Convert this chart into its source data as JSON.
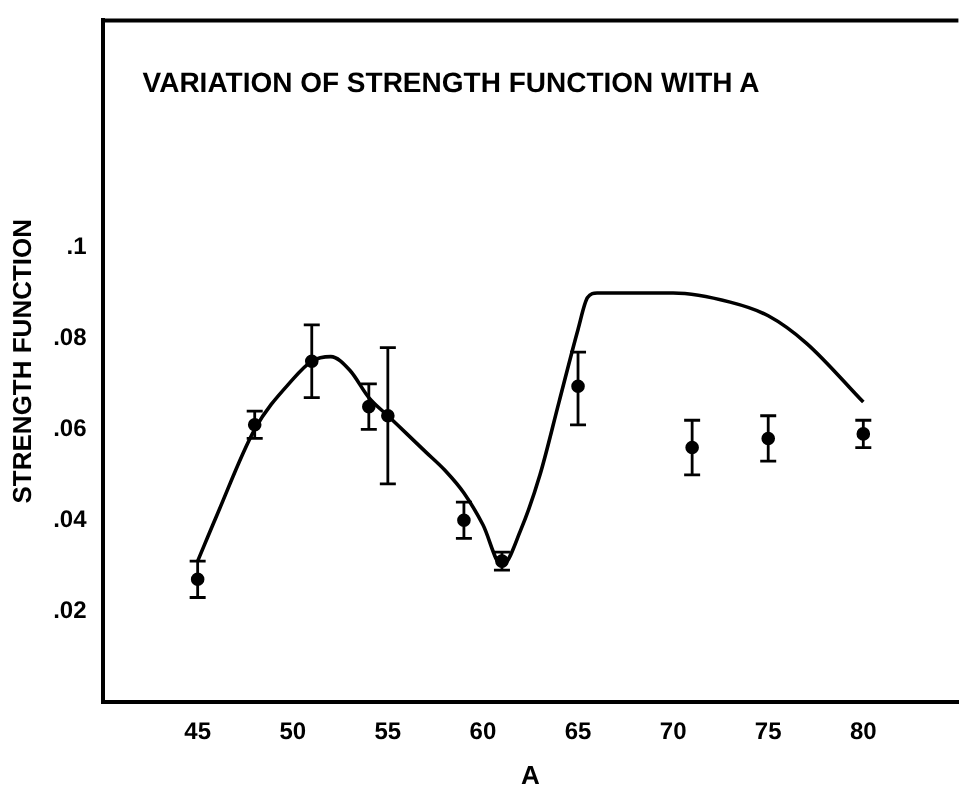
{
  "chart_data": {
    "type": "scatter",
    "title": "VARIATION OF STRENGTH FUNCTION WITH A",
    "xlabel": "A",
    "ylabel": "STRENGTH FUNCTION",
    "xlim": [
      40,
      85
    ],
    "xticks": [
      45,
      50,
      55,
      60,
      65,
      70,
      75,
      80
    ],
    "ylim": [
      0,
      0.15
    ],
    "yticks": [
      {
        "value": 0.02,
        "label": ".02"
      },
      {
        "value": 0.04,
        "label": ".04"
      },
      {
        "value": 0.06,
        "label": ".06"
      },
      {
        "value": 0.08,
        "label": ".08"
      },
      {
        "value": 0.1,
        "label": ".1"
      }
    ],
    "grid": false,
    "legend": false,
    "series": [
      {
        "type": "scatter",
        "color": "#000000",
        "marker": "circle",
        "x": [
          45,
          48,
          51,
          54,
          55,
          59,
          61,
          65,
          71,
          75,
          80
        ],
        "values": [
          0.027,
          0.061,
          0.075,
          0.065,
          0.063,
          0.04,
          0.031,
          0.0695,
          0.056,
          0.058,
          0.059
        ],
        "errors": [
          [
            0.023,
            0.031
          ],
          [
            0.058,
            0.064
          ],
          [
            0.067,
            0.083
          ],
          [
            0.06,
            0.07
          ],
          [
            0.048,
            0.078
          ],
          [
            0.036,
            0.044
          ],
          [
            0.029,
            0.033
          ],
          [
            0.061,
            0.077
          ],
          [
            0.05,
            0.062
          ],
          [
            0.053,
            0.063
          ],
          [
            0.056,
            0.062
          ]
        ]
      },
      {
        "type": "line",
        "color": "#000000",
        "marker": "none",
        "line_style": "solid",
        "x": [
          45,
          46,
          48,
          50,
          51,
          52,
          53,
          54,
          55,
          56,
          57,
          58,
          59,
          60,
          61,
          62,
          63,
          64,
          65,
          65.5,
          66,
          70,
          73,
          75,
          77,
          80
        ],
        "values": [
          0.031,
          0.041,
          0.06,
          0.071,
          0.075,
          0.076,
          0.073,
          0.067,
          0.063,
          0.059,
          0.055,
          0.051,
          0.046,
          0.039,
          0.03,
          0.038,
          0.05,
          0.066,
          0.082,
          0.089,
          0.09,
          0.09,
          0.088,
          0.085,
          0.079,
          0.066
        ]
      }
    ]
  }
}
